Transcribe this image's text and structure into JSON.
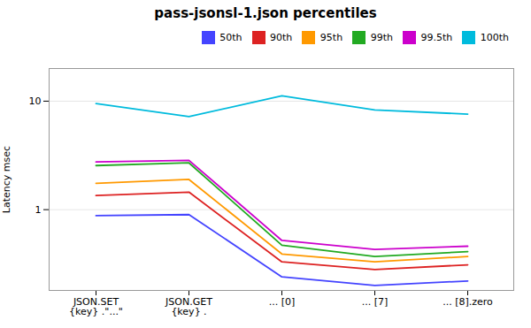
{
  "chart_data": {
    "type": "line",
    "title": "pass-jsonsl-1.json percentiles",
    "ylabel": "Latency msec",
    "categories": [
      "JSON.SET\n{key} .\"...\"",
      "JSON.GET\n{key} .",
      "... [0]",
      "... [7]",
      "... [8].zero"
    ],
    "series": [
      {
        "name": "50th",
        "color": "#4444ff",
        "values": [
          0.88,
          0.9,
          0.24,
          0.2,
          0.22
        ]
      },
      {
        "name": "90th",
        "color": "#dd2222",
        "values": [
          1.35,
          1.45,
          0.33,
          0.28,
          0.31
        ]
      },
      {
        "name": "95th",
        "color": "#ff9900",
        "values": [
          1.75,
          1.9,
          0.39,
          0.33,
          0.37
        ]
      },
      {
        "name": "99th",
        "color": "#22aa22",
        "values": [
          2.55,
          2.7,
          0.47,
          0.37,
          0.41
        ]
      },
      {
        "name": "99.5th",
        "color": "#cc00cc",
        "values": [
          2.75,
          2.85,
          0.52,
          0.43,
          0.46
        ]
      },
      {
        "name": "100th",
        "color": "#00bbdd",
        "values": [
          9.5,
          7.2,
          11.2,
          8.3,
          7.6
        ]
      }
    ],
    "log": "y",
    "ylim": [
      0.18,
      20
    ],
    "yticks": [
      1,
      10
    ],
    "grid": true,
    "legend": "upper right"
  }
}
